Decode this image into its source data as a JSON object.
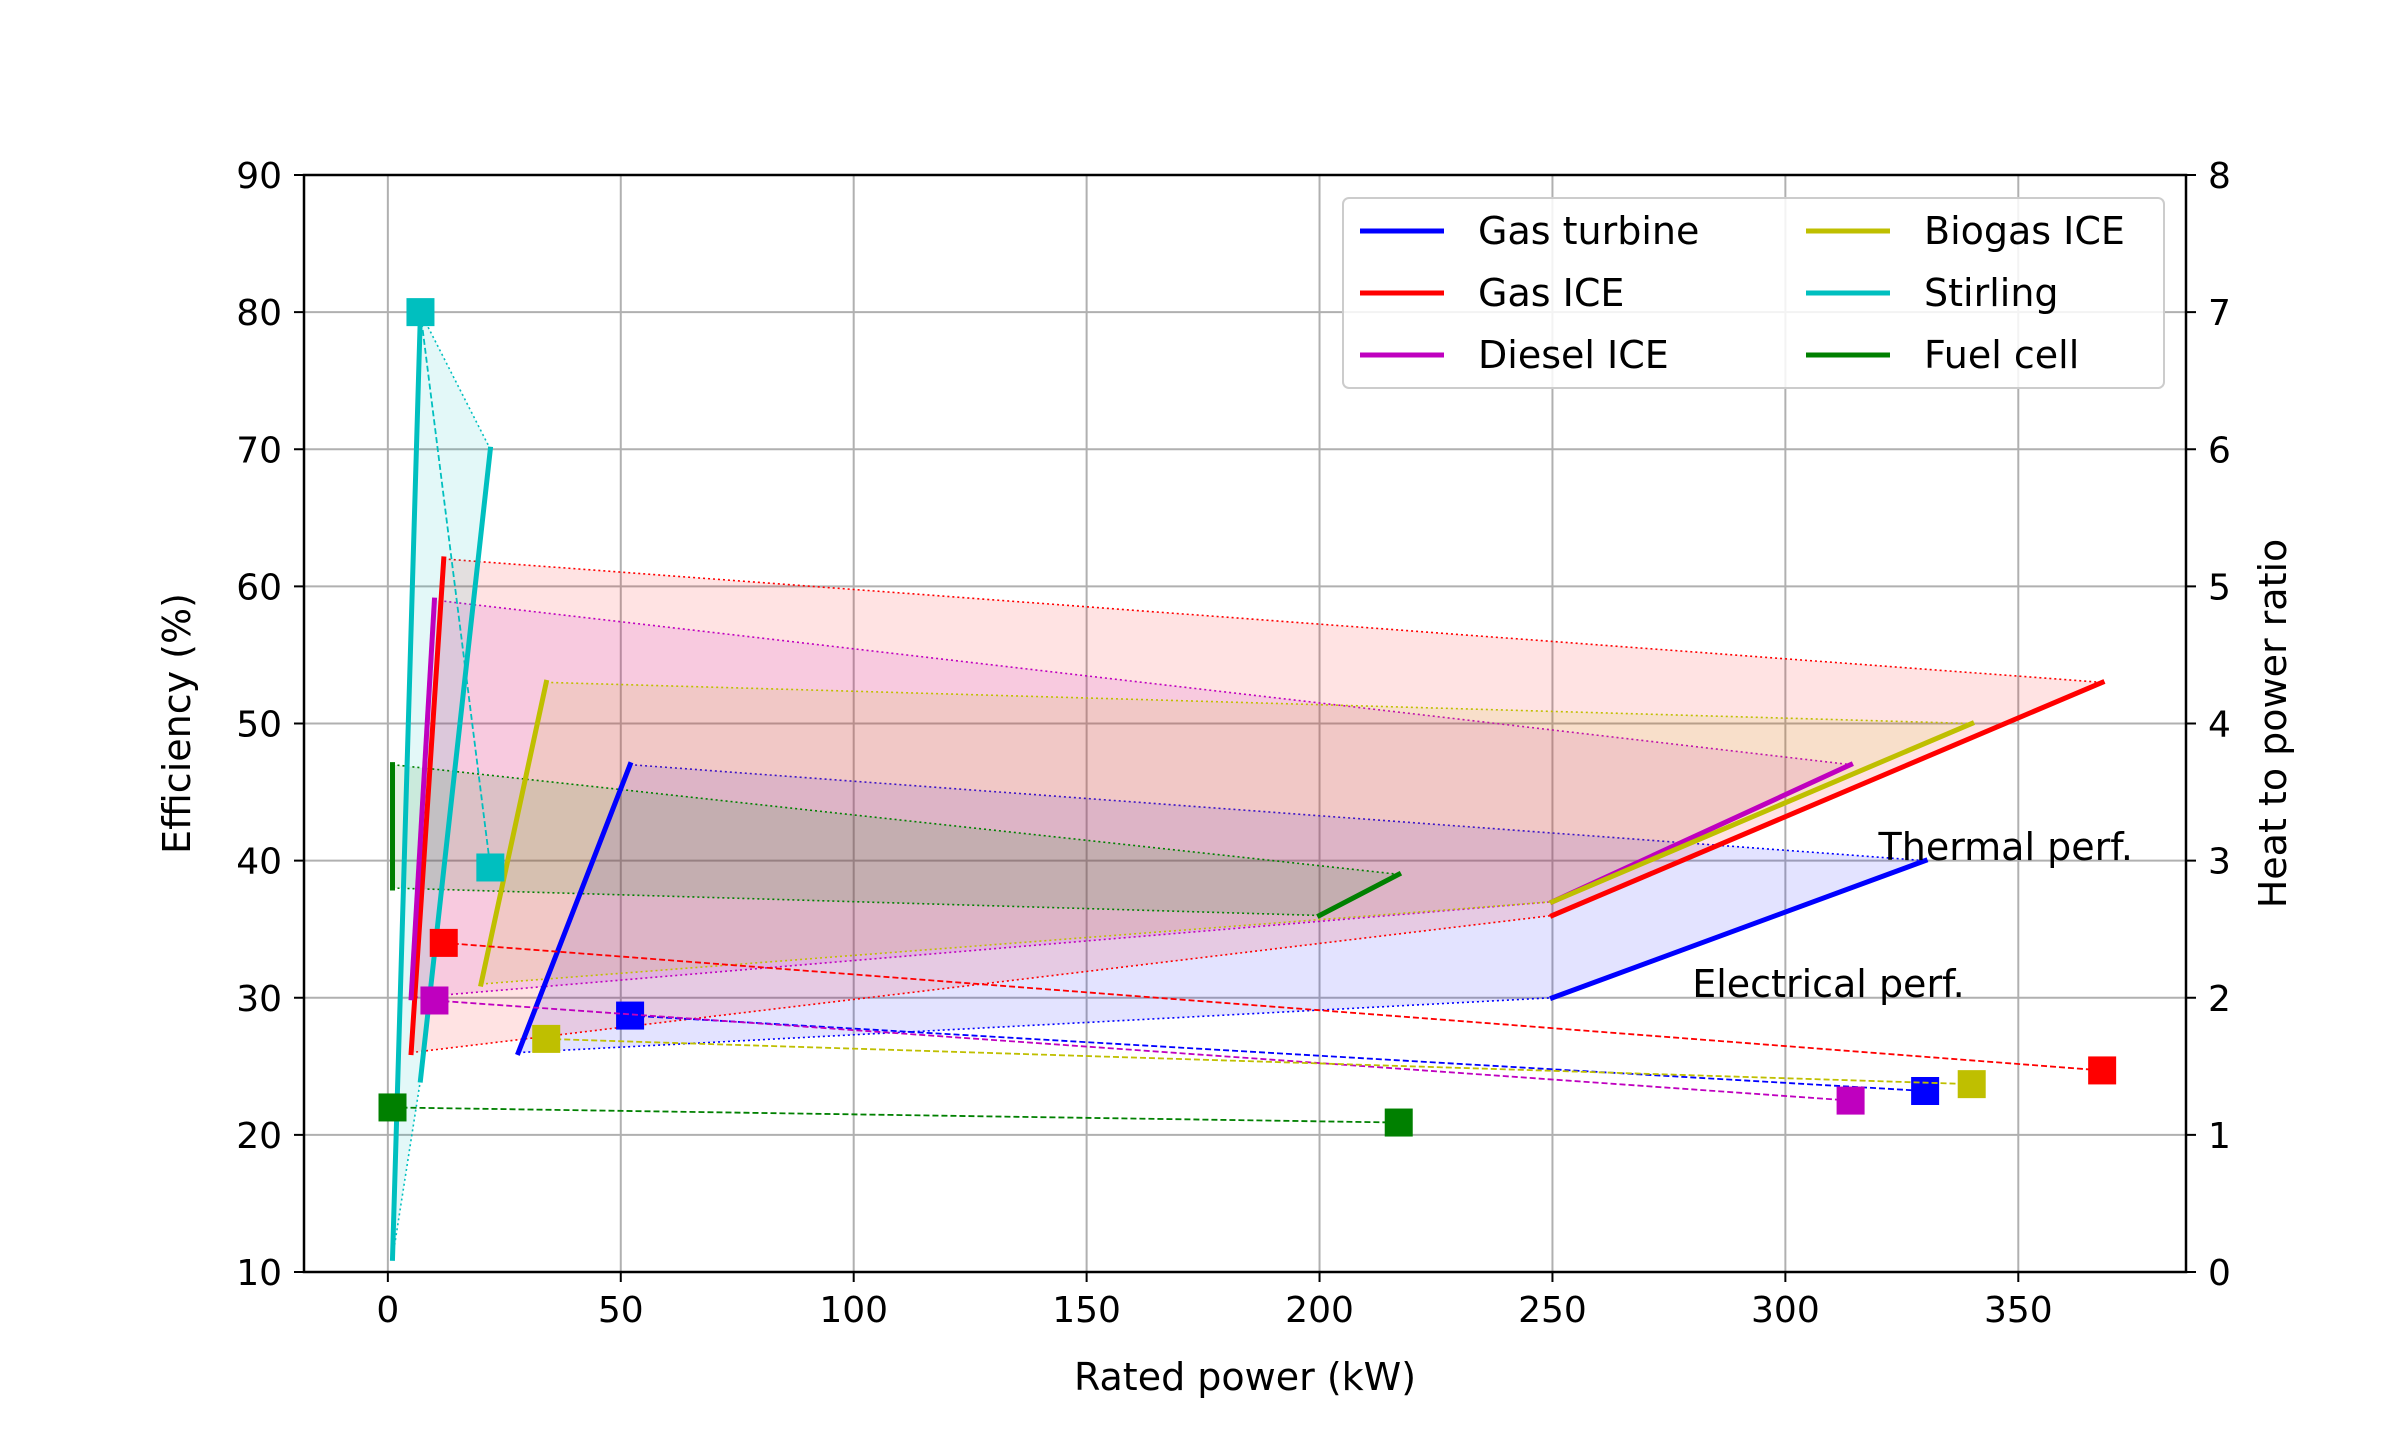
{
  "chart_data": {
    "type": "line",
    "title": "",
    "xlabel": "Rated power (kW)",
    "ylabel": "Efficiency (%)",
    "y2label": "Heat to power ratio",
    "xlim": [
      -18,
      386
    ],
    "ylim": [
      10,
      90
    ],
    "y2lim": [
      0,
      8
    ],
    "xticks": [
      "0",
      "50",
      "100",
      "150",
      "200",
      "250",
      "300",
      "350"
    ],
    "yticks": [
      "10",
      "20",
      "30",
      "40",
      "50",
      "60",
      "70",
      "80",
      "90"
    ],
    "y2ticks": [
      "0",
      "1",
      "2",
      "3",
      "4",
      "5",
      "6",
      "7",
      "8"
    ],
    "grid": true,
    "legend_position": "top-right",
    "legend_columns": 2,
    "annotations": [
      {
        "text": "Thermal perf.",
        "x": 320,
        "y": 41
      },
      {
        "text": "Electrical perf.",
        "x": 280,
        "y": 31
      }
    ],
    "series": [
      {
        "name": "Gas turbine",
        "color": "#0000ff",
        "electrical": {
          "x": [
            28,
            52
          ],
          "y": [
            26,
            47
          ]
        },
        "thermal": {
          "x": [
            250,
            330
          ],
          "y": [
            30,
            40
          ]
        },
        "heat_to_power": {
          "x": [
            52,
            330
          ],
          "y": [
            1.87,
            1.32
          ]
        }
      },
      {
        "name": "Gas ICE",
        "color": "#ff0000",
        "electrical": {
          "x": [
            5,
            12
          ],
          "y": [
            26,
            62
          ]
        },
        "thermal": {
          "x": [
            250,
            368
          ],
          "y": [
            36,
            53
          ]
        },
        "heat_to_power": {
          "x": [
            12,
            368
          ],
          "y": [
            2.4,
            1.47
          ]
        }
      },
      {
        "name": "Diesel ICE",
        "color": "#bf00bf",
        "electrical": {
          "x": [
            5,
            10
          ],
          "y": [
            30,
            59
          ]
        },
        "thermal": {
          "x": [
            250,
            314
          ],
          "y": [
            37,
            47
          ]
        },
        "heat_to_power": {
          "x": [
            10,
            314
          ],
          "y": [
            1.98,
            1.25
          ]
        }
      },
      {
        "name": "Biogas ICE",
        "color": "#bfbf00",
        "electrical": {
          "x": [
            20,
            34
          ],
          "y": [
            31,
            53
          ]
        },
        "thermal": {
          "x": [
            250,
            340
          ],
          "y": [
            37,
            50
          ]
        },
        "heat_to_power": {
          "x": [
            34,
            340
          ],
          "y": [
            1.7,
            1.37
          ]
        }
      },
      {
        "name": "Stirling",
        "color": "#00bfbf",
        "electrical": {
          "x": [
            7,
            22
          ],
          "y": [
            24,
            70
          ]
        },
        "thermal": {
          "x": [
            1,
            7
          ],
          "y": [
            11,
            80
          ]
        },
        "heat_to_power": {
          "x": [
            7,
            22
          ],
          "y": [
            7.0,
            2.95
          ]
        }
      },
      {
        "name": "Fuel cell",
        "color": "#008000",
        "electrical": {
          "x": [
            1,
            1
          ],
          "y": [
            38,
            47
          ]
        },
        "thermal": {
          "x": [
            200,
            217
          ],
          "y": [
            36,
            39
          ]
        },
        "heat_to_power": {
          "x": [
            1,
            217
          ],
          "y": [
            1.2,
            1.09
          ]
        }
      }
    ]
  }
}
